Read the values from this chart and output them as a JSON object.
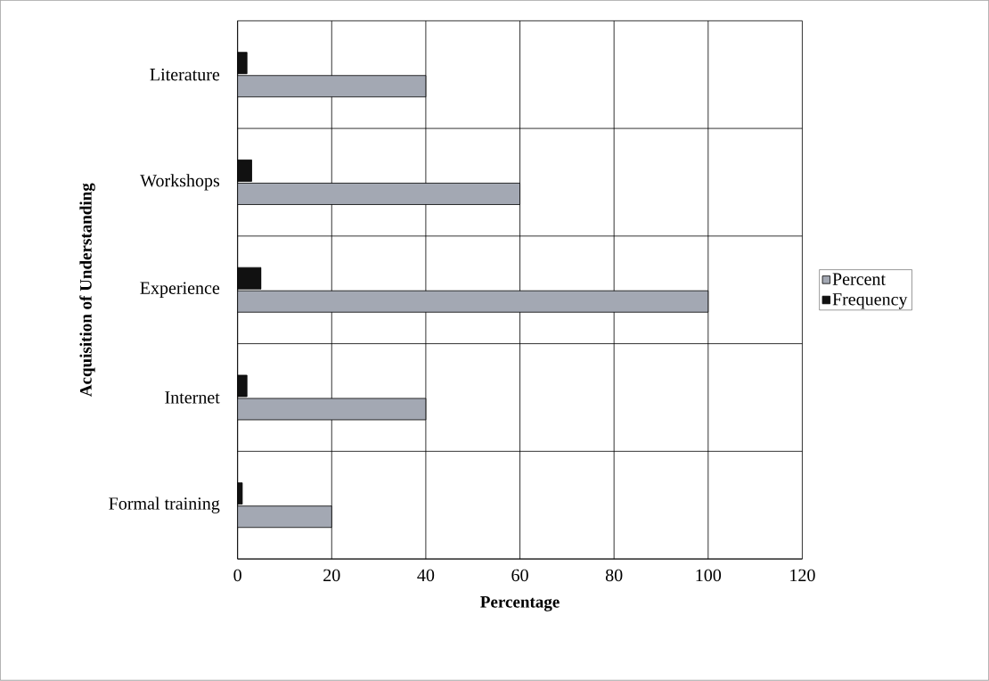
{
  "chart_data": {
    "type": "bar",
    "orientation": "horizontal",
    "xlabel": "Percentage",
    "ylabel": "Acquisition of Understanding",
    "categories": [
      "Literature",
      "Workshops",
      "Experience",
      "Internet",
      "Formal training"
    ],
    "series": [
      {
        "name": "Percent",
        "color": "#a3a8b3",
        "values": [
          40,
          60,
          100,
          40,
          20
        ]
      },
      {
        "name": "Frequency",
        "color": "#111111",
        "values": [
          2,
          3,
          5,
          2,
          1
        ]
      }
    ],
    "xlim": [
      0,
      120
    ],
    "xticks": [
      0,
      20,
      40,
      60,
      80,
      100,
      120
    ],
    "grid": true,
    "legend": "right"
  }
}
